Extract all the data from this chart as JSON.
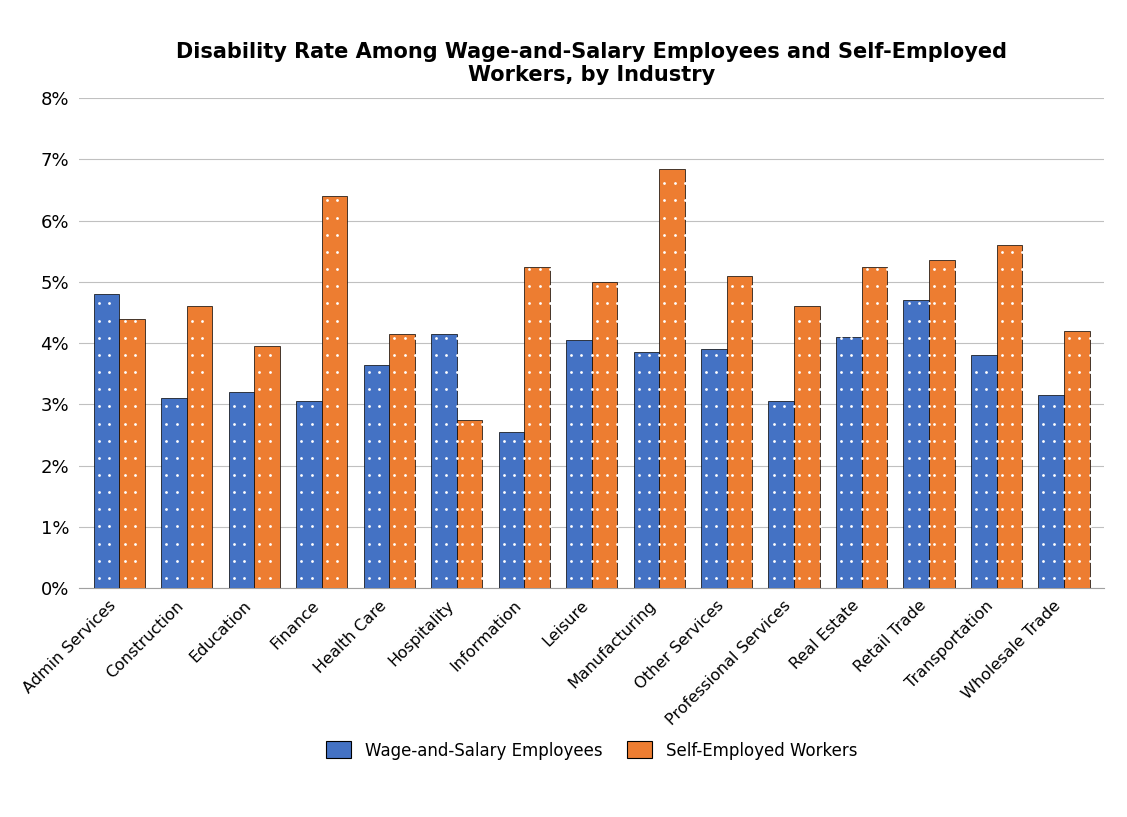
{
  "title": "Disability Rate Among Wage-and-Salary Employees and Self-Employed\nWorkers, by Industry",
  "categories": [
    "Admin Services",
    "Construction",
    "Education",
    "Finance",
    "Health Care",
    "Hospitality",
    "Information",
    "Leisure",
    "Manufacturing",
    "Other Services",
    "Professional Services",
    "Real Estate",
    "Retail Trade",
    "Transportation",
    "Wholesale Trade"
  ],
  "wage_salary": [
    4.8,
    3.1,
    3.2,
    3.05,
    3.65,
    4.15,
    2.55,
    4.05,
    3.85,
    3.9,
    3.05,
    4.1,
    4.7,
    3.8,
    3.15
  ],
  "self_employed": [
    4.4,
    4.6,
    3.95,
    6.4,
    4.15,
    2.75,
    5.25,
    5.0,
    6.85,
    5.1,
    4.6,
    5.25,
    5.35,
    5.6,
    4.2
  ],
  "wage_color": "#4472C4",
  "self_color": "#ED7D31",
  "ylim": [
    0,
    0.08
  ],
  "yticks": [
    0,
    0.01,
    0.02,
    0.03,
    0.04,
    0.05,
    0.06,
    0.07,
    0.08
  ],
  "ytick_labels": [
    "0%",
    "1%",
    "2%",
    "3%",
    "4%",
    "5%",
    "6%",
    "7%",
    "8%"
  ],
  "legend_labels": [
    "Wage-and-Salary Employees",
    "Self-Employed Workers"
  ],
  "title_fontsize": 15,
  "background_color": "#ffffff",
  "grid_color": "#C0C0C0"
}
